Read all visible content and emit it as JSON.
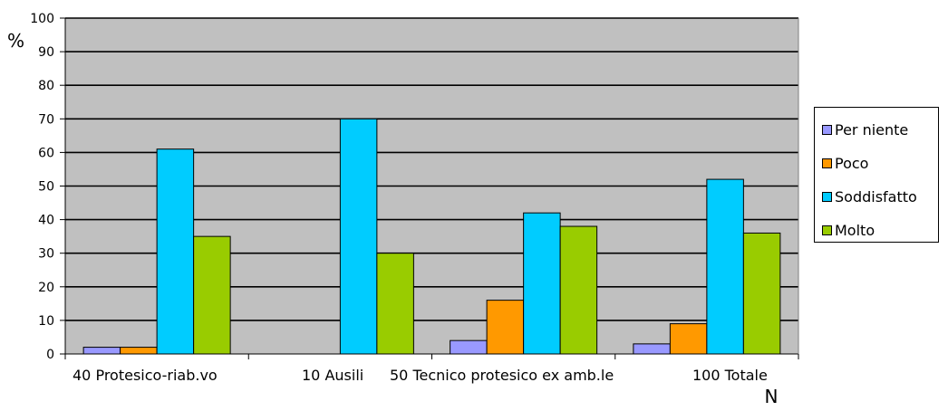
{
  "chart_data": {
    "type": "bar",
    "title": "",
    "ylabel": "%",
    "xlabel": "N",
    "ylim": [
      0,
      100
    ],
    "yticks": [
      0,
      10,
      20,
      30,
      40,
      50,
      60,
      70,
      80,
      90,
      100
    ],
    "grid": true,
    "plot_background": "#c0c0c0",
    "legend_position": "right",
    "categories": [
      "40 Protesico-riab.vo",
      "10 Ausili",
      "50 Tecnico protesico ex amb.le",
      "100 Totale"
    ],
    "series": [
      {
        "name": "Per niente",
        "color": "#9999ff",
        "values": [
          2,
          0,
          4,
          3
        ]
      },
      {
        "name": "Poco",
        "color": "#ff9900",
        "values": [
          2,
          0,
          16,
          9
        ]
      },
      {
        "name": "Soddisfatto",
        "color": "#00ccff",
        "values": [
          61,
          70,
          42,
          52
        ]
      },
      {
        "name": "Molto",
        "color": "#99cc00",
        "values": [
          35,
          30,
          38,
          36
        ]
      }
    ]
  }
}
